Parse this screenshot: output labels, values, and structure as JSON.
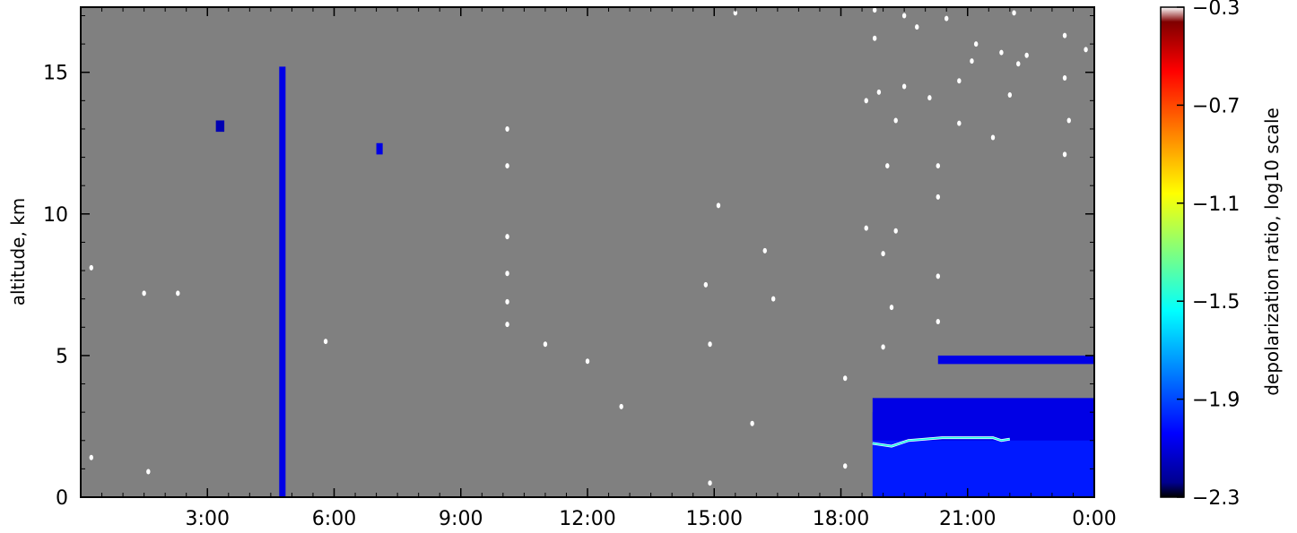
{
  "chart_data": {
    "type": "heatmap",
    "title": "",
    "xlabel": "",
    "ylabel": "altitude, km",
    "colorbar_label": "depolarization ratio, log10 scale",
    "xlim_hours": [
      0,
      24
    ],
    "ylim": [
      0,
      17.3
    ],
    "x_ticks": [
      {
        "hour": 3,
        "label": "3:00"
      },
      {
        "hour": 6,
        "label": "6:00"
      },
      {
        "hour": 9,
        "label": "9:00"
      },
      {
        "hour": 12,
        "label": "12:00"
      },
      {
        "hour": 15,
        "label": "15:00"
      },
      {
        "hour": 18,
        "label": "18:00"
      },
      {
        "hour": 21,
        "label": "21:00"
      },
      {
        "hour": 24,
        "label": "0:00"
      }
    ],
    "y_ticks": [
      {
        "value": 0,
        "label": "0"
      },
      {
        "value": 5,
        "label": "5"
      },
      {
        "value": 10,
        "label": "10"
      },
      {
        "value": 15,
        "label": "15"
      }
    ],
    "colorbar_range": [
      -2.3,
      -0.3
    ],
    "colorbar_ticks": [
      {
        "value": -0.3,
        "label": "−0.3"
      },
      {
        "value": -0.7,
        "label": "−0.7"
      },
      {
        "value": -1.1,
        "label": "−1.1"
      },
      {
        "value": -1.5,
        "label": "−1.5"
      },
      {
        "value": -1.9,
        "label": "−1.9"
      },
      {
        "value": -2.3,
        "label": "−2.3"
      }
    ],
    "colormap": "jet",
    "background_color": "#808080",
    "regions": [
      {
        "name": "boundary layer",
        "x0": 18.75,
        "x1": 24.0,
        "y0": 0.0,
        "y1": 3.0,
        "value": -2.0
      },
      {
        "name": "aerosol plumes",
        "x0": 18.75,
        "x1": 24.0,
        "y0": 2.0,
        "y1": 3.5,
        "value": -2.1
      },
      {
        "name": "cloud layer",
        "x0": 20.3,
        "x1": 24.0,
        "y0": 4.7,
        "y1": 5.0,
        "value": -2.1
      },
      {
        "name": "vertical streak",
        "x0": 4.7,
        "x1": 4.85,
        "y0": 0.0,
        "y1": 15.2,
        "value": -2.1
      },
      {
        "name": "cloud patch",
        "x0": 3.2,
        "x1": 3.4,
        "y0": 12.9,
        "y1": 13.3,
        "value": -2.2
      },
      {
        "name": "cloud patch",
        "x0": 7.0,
        "x1": 7.15,
        "y0": 12.1,
        "y1": 12.5,
        "value": -2.1
      }
    ],
    "contour_level": -1.5,
    "contour_segments": [
      {
        "x": [
          18.75,
          19.2,
          19.6,
          20.4,
          20.9,
          21.2,
          21.6,
          21.8,
          22.0
        ],
        "y": [
          1.9,
          1.8,
          2.0,
          2.1,
          2.1,
          2.1,
          2.1,
          2.0,
          2.05
        ]
      }
    ],
    "sparse_points": [
      [
        0.25,
        8.1
      ],
      [
        0.25,
        1.4
      ],
      [
        1.5,
        7.2
      ],
      [
        1.6,
        0.9
      ],
      [
        2.3,
        7.2
      ],
      [
        5.8,
        5.5
      ],
      [
        10.1,
        13.0
      ],
      [
        10.1,
        11.7
      ],
      [
        10.1,
        9.2
      ],
      [
        10.1,
        7.9
      ],
      [
        10.1,
        6.9
      ],
      [
        10.1,
        6.1
      ],
      [
        11.0,
        5.4
      ],
      [
        12.0,
        4.8
      ],
      [
        12.8,
        3.2
      ],
      [
        14.8,
        7.5
      ],
      [
        14.9,
        5.4
      ],
      [
        14.9,
        0.5
      ],
      [
        15.1,
        10.3
      ],
      [
        16.2,
        8.7
      ],
      [
        16.4,
        7.0
      ],
      [
        15.9,
        2.6
      ],
      [
        18.1,
        4.2
      ],
      [
        18.1,
        1.1
      ],
      [
        18.6,
        9.5
      ],
      [
        18.6,
        14.0
      ],
      [
        18.9,
        14.3
      ],
      [
        18.8,
        16.2
      ],
      [
        19.1,
        11.7
      ],
      [
        19.0,
        8.6
      ],
      [
        19.0,
        5.3
      ],
      [
        19.2,
        6.7
      ],
      [
        19.3,
        9.4
      ],
      [
        19.3,
        13.3
      ],
      [
        19.5,
        14.5
      ],
      [
        19.8,
        16.6
      ],
      [
        20.1,
        14.1
      ],
      [
        20.3,
        11.7
      ],
      [
        20.3,
        10.6
      ],
      [
        20.3,
        7.8
      ],
      [
        20.3,
        6.2
      ],
      [
        20.5,
        16.9
      ],
      [
        20.8,
        14.7
      ],
      [
        20.8,
        13.2
      ],
      [
        21.1,
        15.4
      ],
      [
        21.2,
        16.0
      ],
      [
        21.6,
        12.7
      ],
      [
        21.8,
        15.7
      ],
      [
        22.0,
        14.2
      ],
      [
        22.2,
        15.3
      ],
      [
        22.4,
        15.6
      ],
      [
        23.3,
        16.3
      ],
      [
        23.3,
        14.8
      ],
      [
        23.3,
        12.1
      ],
      [
        23.4,
        13.3
      ],
      [
        23.8,
        15.8
      ],
      [
        22.1,
        17.1
      ],
      [
        15.5,
        17.1
      ],
      [
        18.8,
        17.2
      ],
      [
        19.5,
        17.0
      ]
    ]
  }
}
